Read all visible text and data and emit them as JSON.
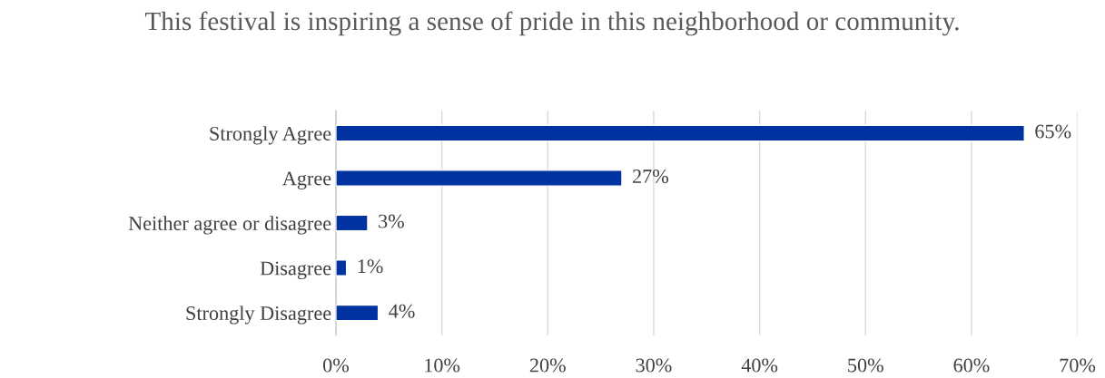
{
  "chart_data": {
    "type": "bar",
    "orientation": "horizontal",
    "title": "This festival is inspiring a sense of pride in this neighborhood or community.",
    "categories": [
      "Strongly Agree",
      "Agree",
      "Neither agree or disagree",
      "Disagree",
      "Strongly Disagree"
    ],
    "values": [
      65,
      27,
      3,
      1,
      4
    ],
    "value_labels": [
      "65%",
      "27%",
      "3%",
      "1%",
      "4%"
    ],
    "color": "#0033a0",
    "xlim": [
      0,
      70
    ],
    "xticks": [
      {
        "value": 0,
        "label": "0%"
      },
      {
        "value": 10,
        "label": "10%"
      },
      {
        "value": 20,
        "label": "20%"
      },
      {
        "value": 30,
        "label": "30%"
      },
      {
        "value": 40,
        "label": "40%"
      },
      {
        "value": 50,
        "label": "50%"
      },
      {
        "value": 60,
        "label": "60%"
      },
      {
        "value": 70,
        "label": "70%"
      }
    ],
    "grid": "x",
    "legend": false
  }
}
